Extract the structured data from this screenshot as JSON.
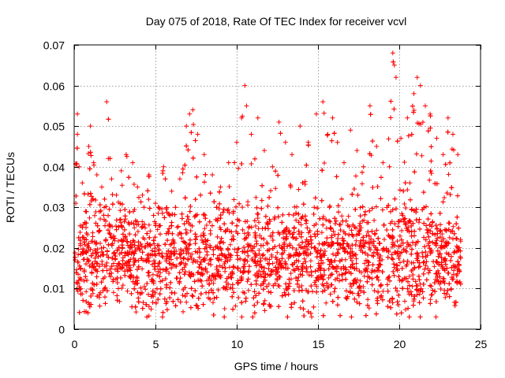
{
  "chart_data": {
    "type": "scatter",
    "title": "Day 075 of 2018, Rate Of TEC Index for receiver vcvl",
    "xlabel": "GPS time / hours",
    "ylabel": "ROTI / TECUs",
    "xlim": [
      0,
      25
    ],
    "ylim": [
      0,
      0.07
    ],
    "xticks": [
      0,
      5,
      10,
      15,
      20,
      25
    ],
    "xtick_labels": [
      "0",
      "5",
      "10",
      "15",
      "20",
      "25"
    ],
    "yticks": [
      0,
      0.01,
      0.02,
      0.03,
      0.04,
      0.05,
      0.06,
      0.07
    ],
    "ytick_labels": [
      "0",
      "0.01",
      "0.02",
      "0.03",
      "0.04",
      "0.05",
      "0.06",
      "0.07"
    ],
    "grid": true,
    "marker": "plus",
    "color": "#ff0000",
    "series": [
      {
        "name": "ROTI",
        "x": [
          0.1,
          0.2,
          0.2,
          0.3,
          0.5,
          0.7,
          0.9,
          1.0,
          1.2,
          1.4,
          1.7,
          2.0,
          2.1,
          2.3,
          2.6,
          2.9,
          3.2,
          3.6,
          3.9,
          4.2,
          4.6,
          5.0,
          5.5,
          6.0,
          6.5,
          6.9,
          7.1,
          7.3,
          7.6,
          8.0,
          8.5,
          9.0,
          9.5,
          10.0,
          10.3,
          10.5,
          10.6,
          10.9,
          11.3,
          11.7,
          12.2,
          12.6,
          13.0,
          13.4,
          13.9,
          14.4,
          14.9,
          15.3,
          15.6,
          15.9,
          16.2,
          16.6,
          17.0,
          17.4,
          17.8,
          18.2,
          18.6,
          19.0,
          19.4,
          19.6,
          19.7,
          19.8,
          20.1,
          20.5,
          20.9,
          21.1,
          21.3,
          21.6,
          21.9,
          22.3,
          22.7,
          23.0,
          23.3,
          23.6
        ],
        "y": [
          0.031,
          0.053,
          0.048,
          0.04,
          0.036,
          0.029,
          0.045,
          0.05,
          0.041,
          0.038,
          0.035,
          0.056,
          0.042,
          0.037,
          0.033,
          0.039,
          0.043,
          0.041,
          0.035,
          0.033,
          0.038,
          0.031,
          0.04,
          0.034,
          0.037,
          0.05,
          0.053,
          0.054,
          0.048,
          0.043,
          0.038,
          0.035,
          0.041,
          0.046,
          0.052,
          0.06,
          0.055,
          0.048,
          0.052,
          0.044,
          0.04,
          0.051,
          0.046,
          0.043,
          0.05,
          0.046,
          0.053,
          0.056,
          0.048,
          0.052,
          0.046,
          0.041,
          0.049,
          0.044,
          0.04,
          0.055,
          0.045,
          0.041,
          0.04,
          0.068,
          0.065,
          0.062,
          0.047,
          0.052,
          0.058,
          0.062,
          0.06,
          0.055,
          0.053,
          0.047,
          0.043,
          0.052,
          0.048,
          0.043
        ]
      }
    ]
  }
}
